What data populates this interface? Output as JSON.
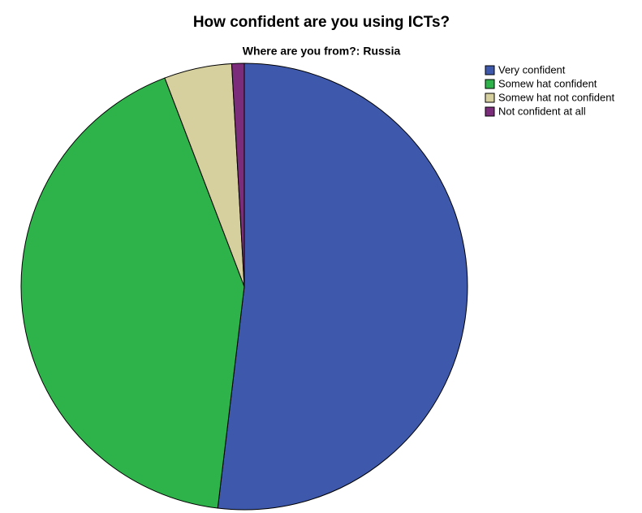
{
  "chart_data": {
    "type": "pie",
    "title": "How confident are you using ICTs?",
    "subtitle": "Where are you from?: Russia",
    "categories": [
      "Very confident",
      "Somew hat confident",
      "Somew hat not confident",
      "Not confident at all"
    ],
    "values": [
      51.9,
      42.3,
      4.9,
      0.9
    ],
    "colors": [
      "#3e58ac",
      "#2db34a",
      "#d6d09e",
      "#7b2c7b"
    ]
  }
}
